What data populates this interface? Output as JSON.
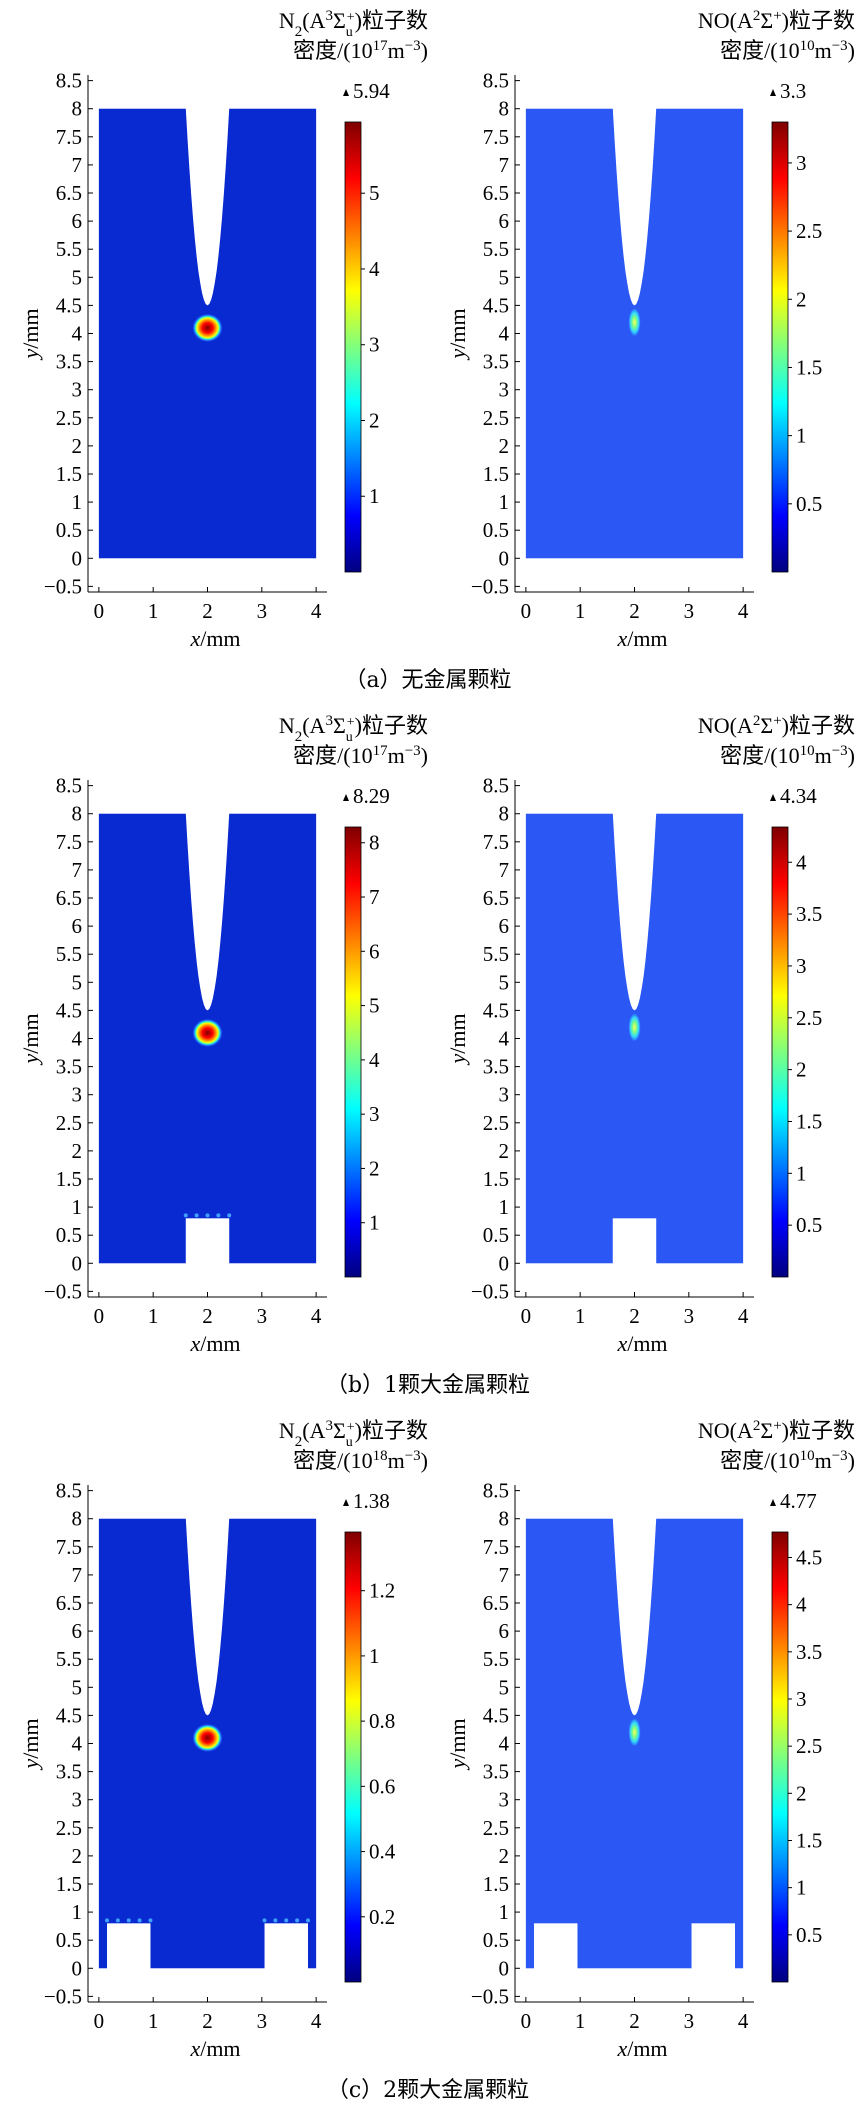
{
  "chart_data": [
    {
      "type": "heatmap",
      "panel": "a",
      "caption": "（a）无金属颗粒",
      "xlabel": "x/mm",
      "ylabel": "y/mm",
      "xlim": [
        -0.2,
        4.2
      ],
      "ylim": [
        -0.6,
        8.6
      ],
      "xticks": [
        0,
        1,
        2,
        3,
        4
      ],
      "yticks": [
        -0.5,
        0,
        0.5,
        1.0,
        1.5,
        2.0,
        2.5,
        3.0,
        3.5,
        4.0,
        4.5,
        5.0,
        5.5,
        6.0,
        6.5,
        7.0,
        7.5,
        8.0,
        8.5
      ],
      "particles": [],
      "maps": [
        {
          "title_line1": "N2(A3Σu+)粒子数",
          "title_line2": "密度/(10^17 m^-3)",
          "max_label": "5.94",
          "cbar_max": 5.94,
          "cbar_ticks": [
            1,
            2,
            3,
            4,
            5
          ],
          "background": "#0a2ad1",
          "hotspot": "ring",
          "hotspot_y": 4.1
        },
        {
          "title_line1": "NO(A2Σ+)粒子数",
          "title_line2": "密度/(10^10 m^-3)",
          "max_label": "3.3",
          "cbar_max": 3.3,
          "cbar_ticks": [
            0.5,
            1.0,
            1.5,
            2.0,
            2.5,
            3.0
          ],
          "background": "#2b57f5",
          "hotspot": "tip",
          "hotspot_y": 4.2
        }
      ]
    },
    {
      "type": "heatmap",
      "panel": "b",
      "caption": "（b）1颗大金属颗粒",
      "xlabel": "x/mm",
      "ylabel": "y/mm",
      "xlim": [
        -0.2,
        4.2
      ],
      "ylim": [
        -0.6,
        8.6
      ],
      "xticks": [
        0,
        1,
        2,
        3,
        4
      ],
      "yticks": [
        -0.5,
        0,
        0.5,
        1.0,
        1.5,
        2.0,
        2.5,
        3.0,
        3.5,
        4.0,
        4.5,
        5.0,
        5.5,
        6.0,
        6.5,
        7.0,
        7.5,
        8.0,
        8.5
      ],
      "particles": [
        {
          "x0": 1.6,
          "x1": 2.4,
          "height": 0.8
        }
      ],
      "maps": [
        {
          "title_line1": "N2(A3Σu+)粒子数",
          "title_line2": "密度/(10^17 m^-3)",
          "max_label": "8.29",
          "cbar_max": 8.29,
          "cbar_ticks": [
            1,
            2,
            3,
            4,
            5,
            6,
            7,
            8
          ],
          "background": "#0a2ad1",
          "hotspot": "ring",
          "hotspot_y": 4.1
        },
        {
          "title_line1": "NO(A2Σ+)粒子数",
          "title_line2": "密度/(10^10 m^-3)",
          "max_label": "4.34",
          "cbar_max": 4.34,
          "cbar_ticks": [
            0.5,
            1.0,
            1.5,
            2.0,
            2.5,
            3.0,
            3.5,
            4.0
          ],
          "background": "#2b57f5",
          "hotspot": "tip",
          "hotspot_y": 4.2
        }
      ]
    },
    {
      "type": "heatmap",
      "panel": "c",
      "caption": "（c）2颗大金属颗粒",
      "xlabel": "x/mm",
      "ylabel": "y/mm",
      "xlim": [
        -0.2,
        4.2
      ],
      "ylim": [
        -0.6,
        8.6
      ],
      "xticks": [
        0,
        1,
        2,
        3,
        4
      ],
      "yticks": [
        -0.5,
        0,
        0.5,
        1.0,
        1.5,
        2.0,
        2.5,
        3.0,
        3.5,
        4.0,
        4.5,
        5.0,
        5.5,
        6.0,
        6.5,
        7.0,
        7.5,
        8.0,
        8.5
      ],
      "particles": [
        {
          "x0": 0.15,
          "x1": 0.95,
          "height": 0.8
        },
        {
          "x0": 3.05,
          "x1": 3.85,
          "height": 0.8
        }
      ],
      "maps": [
        {
          "title_line1": "N2(A3Σu+)粒子数",
          "title_line2": "密度/(10^18 m^-3)",
          "max_label": "1.38",
          "cbar_max": 1.38,
          "cbar_ticks": [
            0.2,
            0.4,
            0.6,
            0.8,
            1.0,
            1.2
          ],
          "background": "#0a2ad1",
          "hotspot": "ring",
          "hotspot_y": 4.1
        },
        {
          "title_line1": "NO(A2Σ+)粒子数",
          "title_line2": "密度/(10^10 m^-3)",
          "max_label": "4.77",
          "cbar_max": 4.77,
          "cbar_ticks": [
            0.5,
            1.0,
            1.5,
            2.0,
            2.5,
            3.0,
            3.5,
            4.0,
            4.5
          ],
          "background": "#2b57f5",
          "hotspot": "tip",
          "hotspot_y": 4.2
        }
      ]
    }
  ],
  "colormap": [
    "#00007f",
    "#0000ff",
    "#007fff",
    "#00ffff",
    "#7fff7f",
    "#ffff00",
    "#ff7f00",
    "#ff0000",
    "#7f0000"
  ]
}
